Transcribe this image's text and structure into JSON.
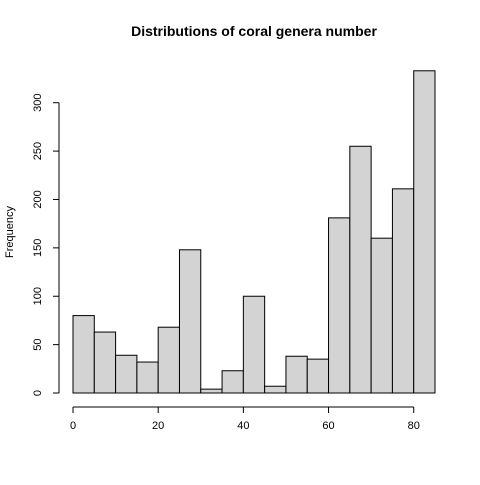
{
  "chart_data": {
    "type": "bar",
    "title": "Distributions of coral genera number",
    "xlabel": "",
    "ylabel": "Frequency",
    "bin_width": 5,
    "bins": [
      {
        "start": 0,
        "end": 5,
        "value": 80
      },
      {
        "start": 5,
        "end": 10,
        "value": 63
      },
      {
        "start": 10,
        "end": 15,
        "value": 39
      },
      {
        "start": 15,
        "end": 20,
        "value": 32
      },
      {
        "start": 20,
        "end": 25,
        "value": 68
      },
      {
        "start": 25,
        "end": 30,
        "value": 148
      },
      {
        "start": 30,
        "end": 35,
        "value": 4
      },
      {
        "start": 35,
        "end": 40,
        "value": 23
      },
      {
        "start": 40,
        "end": 45,
        "value": 100
      },
      {
        "start": 45,
        "end": 50,
        "value": 7
      },
      {
        "start": 50,
        "end": 55,
        "value": 38
      },
      {
        "start": 55,
        "end": 60,
        "value": 35
      },
      {
        "start": 60,
        "end": 65,
        "value": 181
      },
      {
        "start": 65,
        "end": 70,
        "value": 255
      },
      {
        "start": 70,
        "end": 75,
        "value": 160
      },
      {
        "start": 75,
        "end": 80,
        "value": 211
      },
      {
        "start": 80,
        "end": 85,
        "value": 333
      }
    ],
    "xlim": [
      0,
      85
    ],
    "ylim": [
      0,
      333
    ],
    "x_ticks": [
      0,
      20,
      40,
      60,
      80
    ],
    "y_ticks": [
      0,
      50,
      100,
      150,
      200,
      250,
      300
    ],
    "grid": false,
    "bar_color": "#d3d3d3",
    "bar_edge_color": "#000000"
  }
}
